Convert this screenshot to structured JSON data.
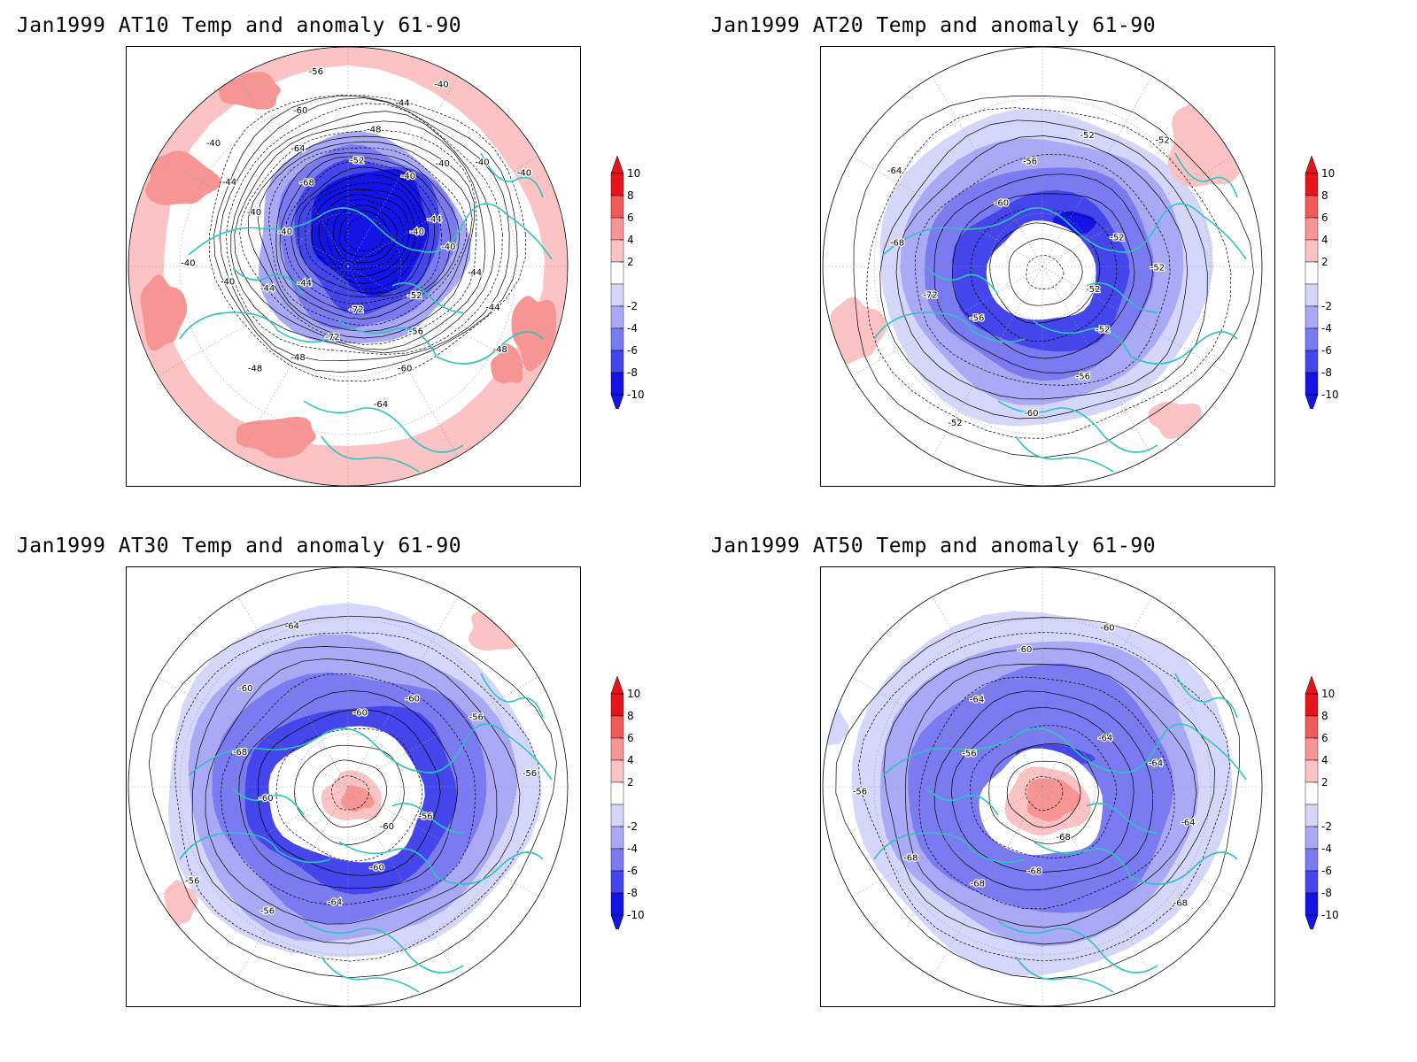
{
  "panels": [
    {
      "title": "Jan1999 AT10 Temp and anomaly 61-90",
      "contour_labels": [
        "-40",
        "-40",
        "-44",
        "-44",
        "-48",
        "-52",
        "-56",
        "-60",
        "-64",
        "-72",
        "-72",
        "-48",
        "-48",
        "-44",
        "-44",
        "-40",
        "-40",
        "-40",
        "-40",
        "-44",
        "-40",
        "-68",
        "-64",
        "-60",
        "-56",
        "-52",
        "-48",
        "-44",
        "-40",
        "-40",
        "-40",
        "-40",
        "-40",
        "-44"
      ],
      "anomaly_pattern": "strong cold core over Arctic, warm ring at low latitudes"
    },
    {
      "title": "Jan1999 AT20 Temp and anomaly 61-90",
      "contour_labels": [
        "-52",
        "-52",
        "-56",
        "-60",
        "-52",
        "-56",
        "-72",
        "-68",
        "-64",
        "-60",
        "-56",
        "-52",
        "-52",
        "-52",
        "-52"
      ],
      "anomaly_pattern": "cold ring around pole"
    },
    {
      "title": "Jan1999 AT30 Temp and anomaly 61-90",
      "contour_labels": [
        "-60",
        "-60",
        "-64",
        "-56",
        "-56",
        "-60",
        "-68",
        "-60",
        "-64",
        "-60",
        "-60",
        "-56",
        "-56",
        "-56"
      ],
      "anomaly_pattern": "cold ring with weak warm center"
    },
    {
      "title": "Jan1999 AT50 Temp and anomaly 61-90",
      "contour_labels": [
        "-68",
        "-68",
        "-68",
        "-68",
        "-56",
        "-56",
        "-64",
        "-60",
        "-60",
        "-64",
        "-64",
        "-64",
        "-68"
      ],
      "anomaly_pattern": "cold ring with warm center near pole"
    }
  ],
  "colorbar": {
    "labels": [
      "10",
      "8",
      "6",
      "4",
      "2",
      "-2",
      "-4",
      "-6",
      "-8",
      "-10"
    ],
    "colors": [
      "#e8141c",
      "#f15a5a",
      "#f79494",
      "#fbc3c3",
      "#ffffff",
      "#d6d6fb",
      "#a9a9f6",
      "#7a7af1",
      "#4545ec",
      "#1414e6"
    ]
  },
  "colors": {
    "coastline": "#2ec4be",
    "contour": "#000000",
    "grid": "#9a9a9a"
  }
}
